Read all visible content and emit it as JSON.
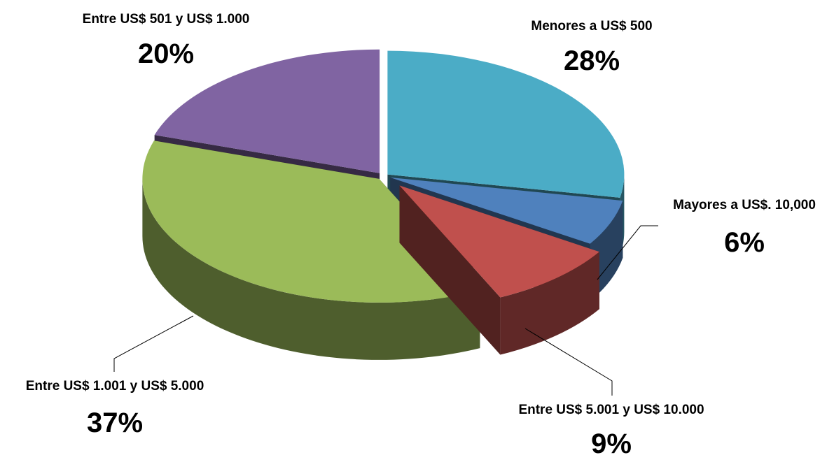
{
  "chart_data": {
    "type": "pie",
    "title": "",
    "style": "3d-exploded",
    "slices": [
      {
        "label": "Menores a US$ 500",
        "value": 28,
        "display": "28%",
        "color": "#4BACC6"
      },
      {
        "label": "Mayores a US$. 10,000",
        "value": 6,
        "display": "6%",
        "color": "#4F81BD"
      },
      {
        "label": "Entre US$ 5.001 y US$ 10.000",
        "value": 9,
        "display": "9%",
        "color": "#C0504D"
      },
      {
        "label": "Entre US$ 1.001 y US$ 5.000",
        "value": 37,
        "display": "37%",
        "color": "#9BBB59"
      },
      {
        "label": "Entre US$ 501 y US$ 1.000",
        "value": 20,
        "display": "20%",
        "color": "#8064A2"
      }
    ]
  }
}
